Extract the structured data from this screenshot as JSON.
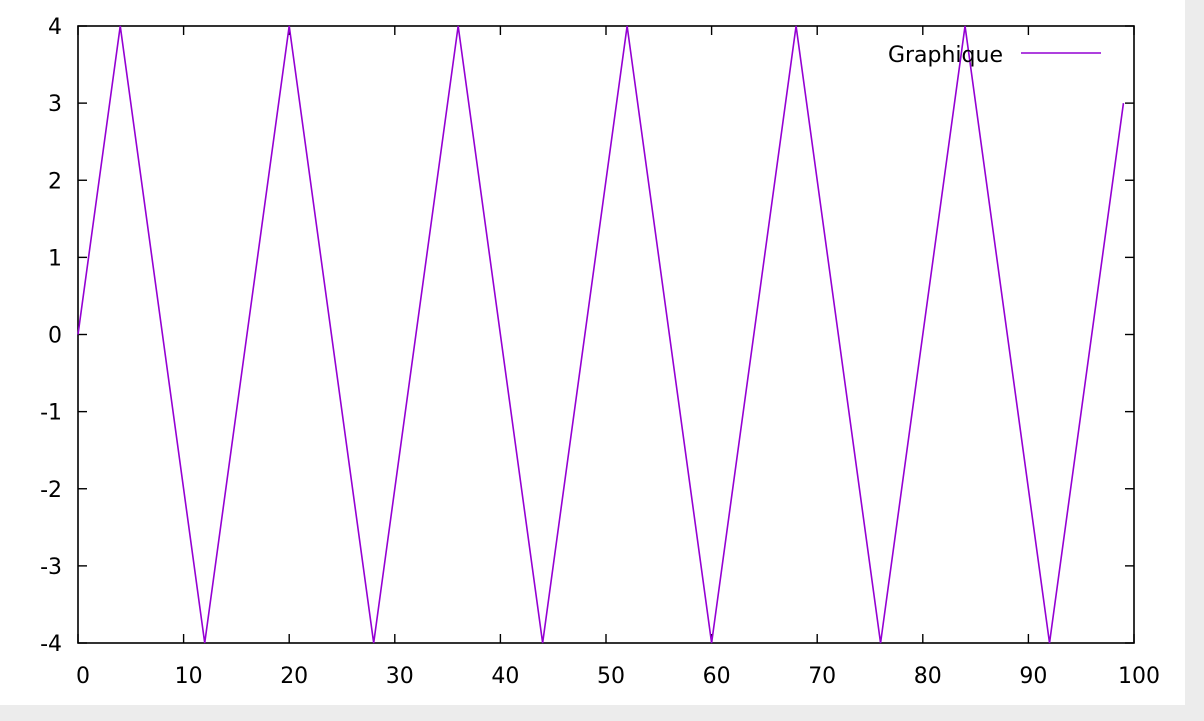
{
  "chart_data": {
    "type": "line",
    "title": "",
    "xlabel": "",
    "ylabel": "",
    "xlim": [
      0,
      100
    ],
    "ylim": [
      -4,
      4
    ],
    "x_ticks": [
      "0",
      "10",
      "20",
      "30",
      "40",
      "50",
      "60",
      "70",
      "80",
      "90",
      "100"
    ],
    "y_ticks": [
      "4",
      "3",
      "2",
      "1",
      "0",
      "-1",
      "-2",
      "-3",
      "-4"
    ],
    "grid": false,
    "legend_position": "top-right",
    "series": [
      {
        "name": "Graphique",
        "color": "#9400d3",
        "x": [
          0,
          4,
          12,
          20,
          28,
          36,
          44,
          52,
          60,
          68,
          76,
          84,
          92,
          99
        ],
        "y": [
          0,
          4,
          -4,
          4,
          -4,
          4,
          -4,
          4,
          -4,
          4,
          -4,
          4,
          -4,
          3
        ]
      }
    ]
  }
}
